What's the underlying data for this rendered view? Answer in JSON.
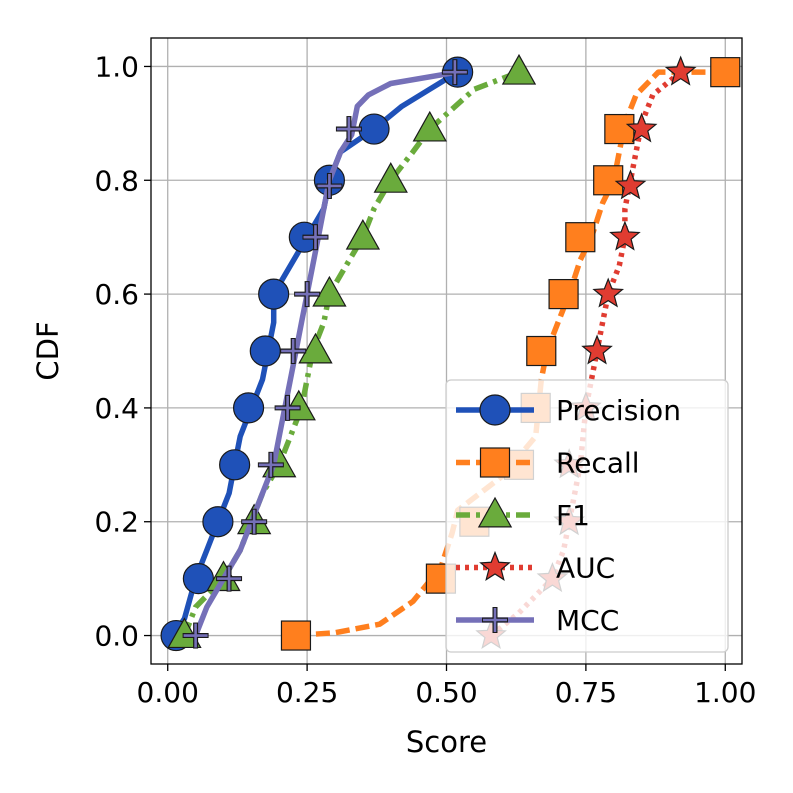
{
  "chart_data": {
    "type": "line",
    "subtype": "cdf",
    "title": "",
    "xlabel": "Score",
    "ylabel": "CDF",
    "xlim": [
      -0.03,
      1.03
    ],
    "ylim": [
      -0.05,
      1.05
    ],
    "xticks": [
      0.0,
      0.25,
      0.5,
      0.75,
      1.0
    ],
    "xtick_labels": [
      "0.00",
      "0.25",
      "0.50",
      "0.75",
      "1.00"
    ],
    "yticks": [
      0.0,
      0.2,
      0.4,
      0.6,
      0.8,
      1.0
    ],
    "ytick_labels": [
      "0.0",
      "0.2",
      "0.4",
      "0.6",
      "0.8",
      "1.0"
    ],
    "grid": true,
    "legend_position": "lower-right",
    "series": [
      {
        "name": "Precision",
        "color": "#1f51b8",
        "line_style": "solid",
        "marker": "circle",
        "line": [
          [
            0.01,
            0.0
          ],
          [
            0.03,
            0.03
          ],
          [
            0.05,
            0.1
          ],
          [
            0.07,
            0.15
          ],
          [
            0.09,
            0.2
          ],
          [
            0.11,
            0.25
          ],
          [
            0.12,
            0.3
          ],
          [
            0.13,
            0.35
          ],
          [
            0.15,
            0.4
          ],
          [
            0.17,
            0.45
          ],
          [
            0.18,
            0.5
          ],
          [
            0.19,
            0.55
          ],
          [
            0.19,
            0.6
          ],
          [
            0.22,
            0.65
          ],
          [
            0.25,
            0.7
          ],
          [
            0.28,
            0.75
          ],
          [
            0.29,
            0.8
          ],
          [
            0.31,
            0.85
          ],
          [
            0.37,
            0.89
          ],
          [
            0.42,
            0.93
          ],
          [
            0.47,
            0.96
          ],
          [
            0.52,
            0.99
          ]
        ],
        "markers": [
          [
            0.015,
            0.0
          ],
          [
            0.055,
            0.1
          ],
          [
            0.09,
            0.2
          ],
          [
            0.12,
            0.3
          ],
          [
            0.145,
            0.4
          ],
          [
            0.175,
            0.5
          ],
          [
            0.19,
            0.6
          ],
          [
            0.245,
            0.7
          ],
          [
            0.29,
            0.8
          ],
          [
            0.37,
            0.89
          ],
          [
            0.52,
            0.99
          ]
        ]
      },
      {
        "name": "Recall",
        "color": "#ff7f1e",
        "line_style": "dashed",
        "marker": "square",
        "line": [
          [
            0.23,
            0.0
          ],
          [
            0.3,
            0.005
          ],
          [
            0.38,
            0.02
          ],
          [
            0.44,
            0.06
          ],
          [
            0.49,
            0.12
          ],
          [
            0.51,
            0.18
          ],
          [
            0.52,
            0.22
          ],
          [
            0.6,
            0.28
          ],
          [
            0.66,
            0.35
          ],
          [
            0.67,
            0.45
          ],
          [
            0.68,
            0.5
          ],
          [
            0.7,
            0.55
          ],
          [
            0.72,
            0.6
          ],
          [
            0.74,
            0.66
          ],
          [
            0.76,
            0.7
          ],
          [
            0.78,
            0.76
          ],
          [
            0.8,
            0.8
          ],
          [
            0.81,
            0.85
          ],
          [
            0.82,
            0.9
          ],
          [
            0.84,
            0.95
          ],
          [
            0.88,
            0.99
          ],
          [
            1.0,
            0.99
          ]
        ],
        "markers": [
          [
            0.23,
            0.0
          ],
          [
            0.49,
            0.1
          ],
          [
            0.55,
            0.2
          ],
          [
            0.63,
            0.3
          ],
          [
            0.66,
            0.4
          ],
          [
            0.67,
            0.5
          ],
          [
            0.71,
            0.6
          ],
          [
            0.74,
            0.7
          ],
          [
            0.79,
            0.8
          ],
          [
            0.81,
            0.89
          ],
          [
            1.0,
            0.99
          ]
        ]
      },
      {
        "name": "F1",
        "color": "#6aab3c",
        "line_style": "dashdot",
        "marker": "triangle",
        "line": [
          [
            0.03,
            0.0
          ],
          [
            0.05,
            0.05
          ],
          [
            0.08,
            0.08
          ],
          [
            0.1,
            0.1
          ],
          [
            0.13,
            0.15
          ],
          [
            0.15,
            0.2
          ],
          [
            0.17,
            0.25
          ],
          [
            0.2,
            0.3
          ],
          [
            0.22,
            0.35
          ],
          [
            0.24,
            0.4
          ],
          [
            0.25,
            0.45
          ],
          [
            0.26,
            0.5
          ],
          [
            0.28,
            0.55
          ],
          [
            0.29,
            0.6
          ],
          [
            0.32,
            0.65
          ],
          [
            0.35,
            0.7
          ],
          [
            0.37,
            0.75
          ],
          [
            0.4,
            0.8
          ],
          [
            0.44,
            0.85
          ],
          [
            0.47,
            0.89
          ],
          [
            0.55,
            0.96
          ],
          [
            0.63,
            0.99
          ]
        ],
        "markers": [
          [
            0.03,
            0.0
          ],
          [
            0.1,
            0.1
          ],
          [
            0.155,
            0.2
          ],
          [
            0.2,
            0.3
          ],
          [
            0.235,
            0.4
          ],
          [
            0.265,
            0.5
          ],
          [
            0.29,
            0.6
          ],
          [
            0.35,
            0.7
          ],
          [
            0.4,
            0.8
          ],
          [
            0.47,
            0.89
          ],
          [
            0.63,
            0.99
          ]
        ]
      },
      {
        "name": "AUC",
        "color": "#e03c31",
        "line_style": "dotted",
        "marker": "star",
        "line": [
          [
            0.58,
            0.0
          ],
          [
            0.63,
            0.04
          ],
          [
            0.69,
            0.1
          ],
          [
            0.71,
            0.15
          ],
          [
            0.72,
            0.2
          ],
          [
            0.74,
            0.3
          ],
          [
            0.75,
            0.4
          ],
          [
            0.76,
            0.45
          ],
          [
            0.77,
            0.5
          ],
          [
            0.78,
            0.55
          ],
          [
            0.79,
            0.6
          ],
          [
            0.81,
            0.65
          ],
          [
            0.82,
            0.7
          ],
          [
            0.82,
            0.75
          ],
          [
            0.83,
            0.8
          ],
          [
            0.84,
            0.85
          ],
          [
            0.85,
            0.9
          ],
          [
            0.87,
            0.95
          ],
          [
            0.92,
            0.99
          ]
        ],
        "markers": [
          [
            0.58,
            0.0
          ],
          [
            0.69,
            0.1
          ],
          [
            0.72,
            0.2
          ],
          [
            0.72,
            0.3
          ],
          [
            0.75,
            0.4
          ],
          [
            0.77,
            0.5
          ],
          [
            0.79,
            0.6
          ],
          [
            0.82,
            0.7
          ],
          [
            0.83,
            0.79
          ],
          [
            0.85,
            0.89
          ],
          [
            0.92,
            0.99
          ]
        ]
      },
      {
        "name": "MCC",
        "color": "#7570b8",
        "line_style": "solid",
        "marker": "plus",
        "line": [
          [
            0.05,
            0.0
          ],
          [
            0.07,
            0.05
          ],
          [
            0.1,
            0.1
          ],
          [
            0.13,
            0.15
          ],
          [
            0.15,
            0.2
          ],
          [
            0.17,
            0.25
          ],
          [
            0.19,
            0.3
          ],
          [
            0.2,
            0.35
          ],
          [
            0.21,
            0.4
          ],
          [
            0.22,
            0.45
          ],
          [
            0.23,
            0.5
          ],
          [
            0.24,
            0.55
          ],
          [
            0.25,
            0.6
          ],
          [
            0.26,
            0.65
          ],
          [
            0.27,
            0.7
          ],
          [
            0.28,
            0.75
          ],
          [
            0.29,
            0.8
          ],
          [
            0.31,
            0.85
          ],
          [
            0.33,
            0.88
          ],
          [
            0.34,
            0.93
          ],
          [
            0.36,
            0.95
          ],
          [
            0.4,
            0.97
          ],
          [
            0.52,
            0.99
          ]
        ],
        "markers": [
          [
            0.05,
            0.0
          ],
          [
            0.11,
            0.1
          ],
          [
            0.155,
            0.2
          ],
          [
            0.185,
            0.3
          ],
          [
            0.215,
            0.4
          ],
          [
            0.225,
            0.5
          ],
          [
            0.25,
            0.6
          ],
          [
            0.265,
            0.7
          ],
          [
            0.29,
            0.79
          ],
          [
            0.325,
            0.89
          ],
          [
            0.515,
            0.99
          ]
        ]
      }
    ]
  }
}
